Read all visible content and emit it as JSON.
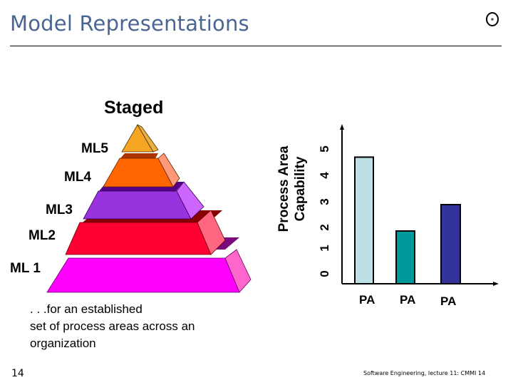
{
  "slide": {
    "title": "Model Representations",
    "logo_icon": "circle-dot-logo",
    "page_number": "14",
    "footer": "Software Engineering, lecture 11: CMMI 14"
  },
  "staged": {
    "heading": "Staged",
    "levels": [
      {
        "label": "ML5",
        "color": "#f5a623"
      },
      {
        "label": "ML4",
        "color": "#ff6600"
      },
      {
        "label": "ML3",
        "color": "#9933cc"
      },
      {
        "label": "ML2",
        "color": "#ff0033"
      },
      {
        "label": "ML 1",
        "color": "#ff00ff"
      }
    ],
    "caption_lines": [
      ". . .for an established",
      "set of process areas across an",
      "organization"
    ]
  },
  "chart_data": {
    "type": "bar",
    "title": "",
    "ylabel": "Process Area Capability",
    "xlabel": "",
    "categories": [
      "PA",
      "PA",
      "PA"
    ],
    "values": [
      4.8,
      2.0,
      3.0
    ],
    "colors": [
      "#bde0e4",
      "#009999",
      "#333399"
    ],
    "yticks": [
      "0",
      "1",
      "2",
      "3",
      "4",
      "5"
    ],
    "ylim": [
      0,
      5.5
    ],
    "grid": false
  }
}
